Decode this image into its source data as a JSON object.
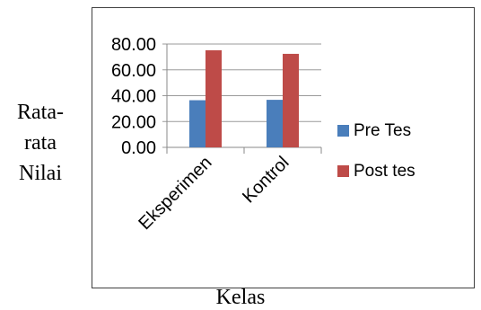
{
  "chart_data": {
    "type": "bar",
    "categories": [
      "Eksperimen",
      "Kontrol"
    ],
    "series": [
      {
        "name": "Pre Tes",
        "values": [
          36.5,
          36.8
        ],
        "color": "#4A7EBB"
      },
      {
        "name": "Post tes",
        "values": [
          75.2,
          72.4
        ],
        "color": "#BE4B48"
      }
    ],
    "ylim": [
      0,
      80
    ],
    "yticks": [
      "0.00",
      "20.00",
      "40.00",
      "60.00",
      "80.00"
    ],
    "ylabel_lines": [
      "Rata-",
      "rata",
      "Nilai"
    ],
    "xlabel": "Kelas",
    "legend": "right",
    "grid": true
  }
}
